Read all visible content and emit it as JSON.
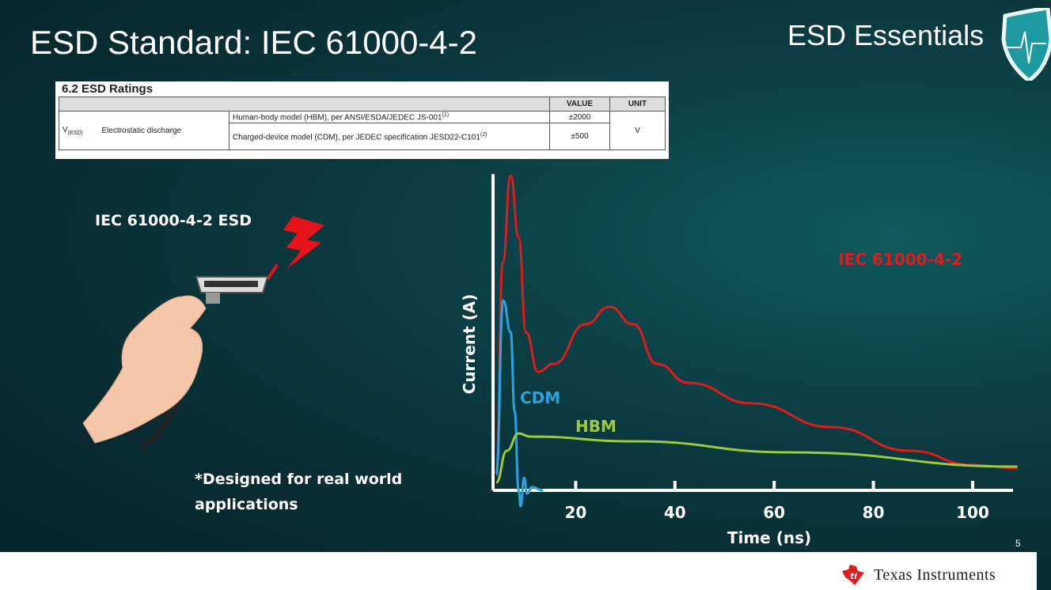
{
  "slide": {
    "title": "ESD Standard: IEC 61000-4-2",
    "brand": "ESD Essentials",
    "page_number": "5",
    "footer_logo": "Texas Instruments"
  },
  "table": {
    "heading": "6.2   ESD Ratings",
    "headers": [
      "",
      "",
      "",
      "VALUE",
      "UNIT"
    ],
    "symbol": "V",
    "symbol_sub": "(ESD)",
    "parameter": "Electrostatic discharge",
    "rows": [
      {
        "condition": "Human-body model (HBM), per ANSI/ESDA/JEDEC JS-001",
        "note": "(1)",
        "value": "±2000"
      },
      {
        "condition": "Charged-device model (CDM), per JEDEC specification JESD22-C101",
        "note": "(2)",
        "value": "±500"
      }
    ],
    "unit": "V"
  },
  "illustration": {
    "label": "IEC 61000-4-2 ESD",
    "note": "*Designed for real world applications"
  },
  "icons": [
    "shield-heartbeat-icon",
    "lightning-bolt-icon",
    "hdmi-connector-icon",
    "hand-icon",
    "texas-instruments-logo-icon"
  ],
  "chart_data": {
    "type": "line",
    "title": "",
    "xlabel": "Time (ns)",
    "ylabel": "Current (A)",
    "xticks": [
      20,
      40,
      60,
      80,
      100
    ],
    "xlim": [
      3.3,
      108
    ],
    "ylim": [
      0,
      100
    ],
    "grid": false,
    "legend": "inline labels",
    "series": [
      {
        "name": "IEC 61000-4-2",
        "color": "#e01b1b",
        "x": [
          4,
          5.3,
          6.9,
          8.5,
          10,
          12.4,
          15.6,
          22,
          26.8,
          31.6,
          36.4,
          42.7,
          55.5,
          71.5,
          87.4,
          100,
          109
        ],
        "y": [
          5,
          72,
          99.5,
          80,
          50,
          37.5,
          40,
          52.5,
          58,
          52.5,
          40,
          34,
          27.5,
          20,
          12.5,
          8,
          7
        ]
      },
      {
        "name": "CDM",
        "color": "#2aa3e0",
        "x": [
          4,
          5.4,
          6.9,
          7.7,
          8.5,
          8.9,
          9.6,
          10.2,
          11.2,
          13.4
        ],
        "y": [
          5,
          60,
          50,
          25,
          0,
          -5,
          4,
          -1,
          1,
          0
        ]
      },
      {
        "name": "HBM",
        "color": "#9ccc3c",
        "x": [
          4,
          6.1,
          8.5,
          10.8,
          31.6,
          63.5,
          109
        ],
        "y": [
          2.5,
          12.5,
          18,
          17,
          15.5,
          12,
          7.5
        ]
      }
    ]
  }
}
